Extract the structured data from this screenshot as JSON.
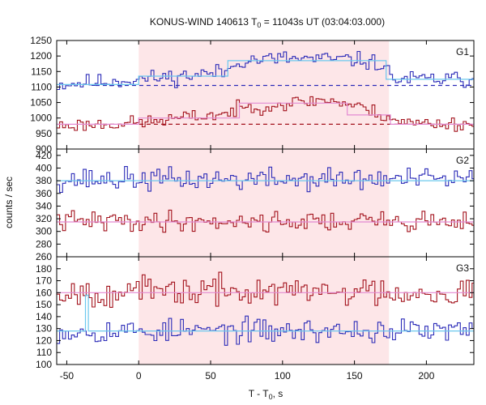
{
  "chart_data": {
    "type": "line",
    "title_main": "KONUS-WIND 140613 T",
    "title_sub": "0",
    "title_rest": " = 11043s UT (03:04:03.000)",
    "xlabel_main": "T - T",
    "xlabel_sub": "0",
    "xlabel_rest": ", s",
    "ylabel": "counts / sec",
    "xlim": [
      -57,
      233
    ],
    "xticks": [
      -50,
      0,
      50,
      100,
      150,
      200
    ],
    "shaded_interval": [
      0,
      174
    ],
    "colors": {
      "shade": "#fde6e8",
      "blue": "#2b2bb8",
      "red": "#a3121c",
      "cyan": "#6bc8ee",
      "pink": "#e38ad2",
      "axis": "#000000"
    },
    "panels": [
      {
        "name": "G1",
        "ylim": [
          900,
          1250
        ],
        "yticks": [
          900,
          950,
          1000,
          1050,
          1100,
          1150,
          1200,
          1250
        ],
        "background_levels": [
          1105,
          980
        ],
        "series": [
          {
            "color": "blue",
            "seed": 11,
            "noise": 13,
            "profile": [
              [
                -57,
                1108
              ],
              [
                0,
                1125
              ],
              [
                30,
                1135
              ],
              [
                62,
                1150
              ],
              [
                68,
                1185
              ],
              [
                100,
                1192
              ],
              [
                150,
                1188
              ],
              [
                168,
                1175
              ],
              [
                178,
                1125
              ],
              [
                233,
                1125
              ]
            ]
          },
          {
            "color": "red",
            "seed": 23,
            "noise": 11,
            "profile": [
              [
                -57,
                975
              ],
              [
                0,
                985
              ],
              [
                30,
                1000
              ],
              [
                62,
                1015
              ],
              [
                70,
                1030
              ],
              [
                100,
                1045
              ],
              [
                130,
                1060
              ],
              [
                150,
                1040
              ],
              [
                170,
                1010
              ],
              [
                185,
                985
              ],
              [
                233,
                980
              ]
            ]
          }
        ],
        "fits": [
          {
            "color": "cyan",
            "points": [
              [
                -57,
                1108
              ],
              [
                0,
                1108
              ],
              [
                0,
                1135
              ],
              [
                62,
                1135
              ],
              [
                62,
                1185
              ],
              [
                172,
                1185
              ],
              [
                172,
                1125
              ],
              [
                233,
                1125
              ]
            ]
          },
          {
            "color": "pink",
            "points": [
              [
                -57,
                980
              ],
              [
                0,
                980
              ],
              [
                0,
                1000
              ],
              [
                70,
                1000
              ],
              [
                70,
                1048
              ],
              [
                145,
                1048
              ],
              [
                145,
                1010
              ],
              [
                175,
                1010
              ],
              [
                175,
                980
              ],
              [
                233,
                980
              ]
            ]
          }
        ]
      },
      {
        "name": "G2",
        "ylim": [
          260,
          430
        ],
        "yticks": [
          260,
          280,
          300,
          320,
          340,
          360,
          380,
          400,
          420
        ],
        "background_levels": [],
        "series": [
          {
            "color": "blue",
            "seed": 37,
            "noise": 9,
            "profile": [
              [
                -57,
                382
              ],
              [
                233,
                382
              ]
            ]
          },
          {
            "color": "red",
            "seed": 41,
            "noise": 8,
            "profile": [
              [
                -57,
                316
              ],
              [
                233,
                316
              ]
            ]
          }
        ],
        "fits": [
          {
            "color": "cyan",
            "points": [
              [
                -57,
                380
              ],
              [
                233,
                380
              ]
            ]
          },
          {
            "color": "pink",
            "points": [
              [
                -57,
                315
              ],
              [
                233,
                315
              ]
            ]
          }
        ]
      },
      {
        "name": "G3",
        "ylim": [
          100,
          190
        ],
        "yticks": [
          100,
          110,
          120,
          130,
          140,
          150,
          160,
          170,
          180
        ],
        "background_levels": [],
        "series": [
          {
            "color": "blue",
            "seed": 53,
            "noise": 5,
            "profile": [
              [
                -57,
                128
              ],
              [
                233,
                128
              ]
            ]
          },
          {
            "color": "red",
            "seed": 67,
            "noise": 6,
            "profile": [
              [
                -57,
                161
              ],
              [
                233,
                161
              ]
            ]
          }
        ],
        "fits": [
          {
            "color": "cyan",
            "points": [
              [
                -57,
                128
              ],
              [
                -37,
                128
              ],
              [
                -37,
                158
              ],
              [
                -35,
                158
              ],
              [
                -35,
                128
              ],
              [
                233,
                128
              ]
            ]
          },
          {
            "color": "pink",
            "points": [
              [
                -57,
                160
              ],
              [
                233,
                160
              ]
            ]
          }
        ]
      }
    ]
  }
}
